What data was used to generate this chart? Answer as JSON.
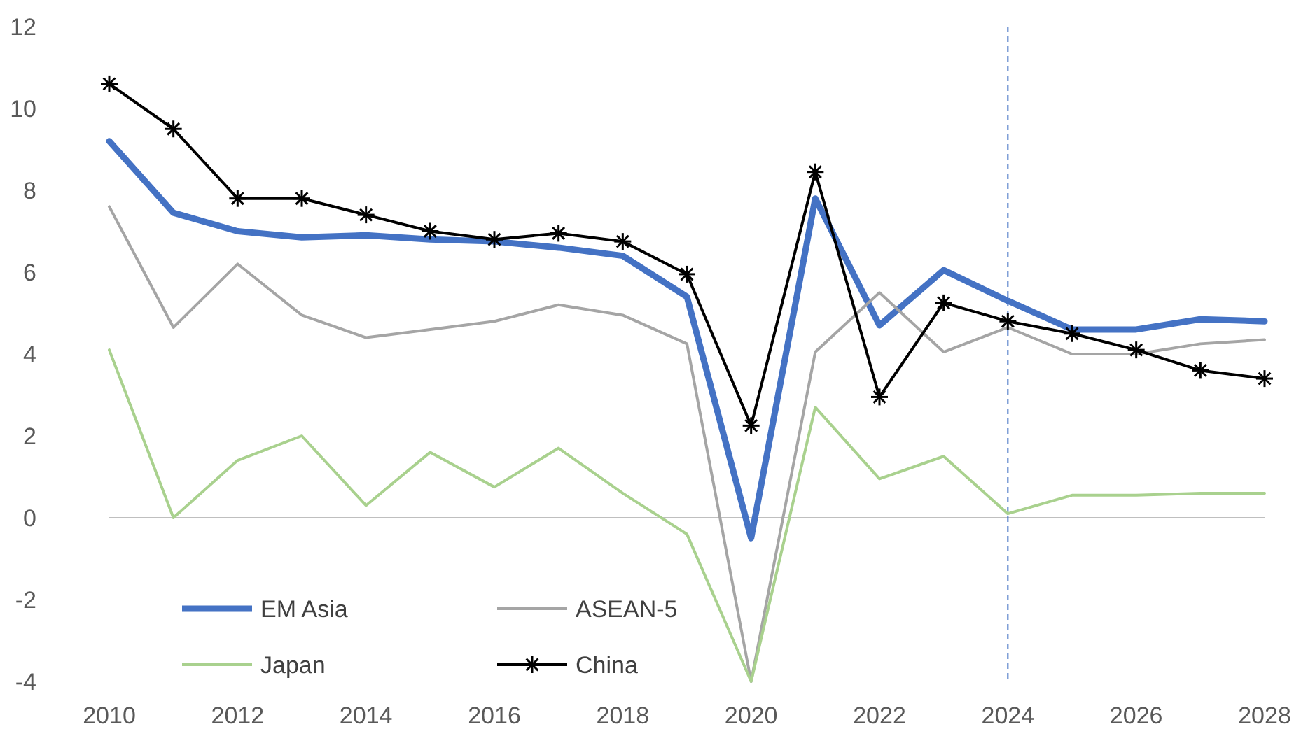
{
  "chart_data": {
    "type": "line",
    "x": [
      2010,
      2011,
      2012,
      2013,
      2014,
      2015,
      2016,
      2017,
      2018,
      2019,
      2020,
      2021,
      2022,
      2023,
      2024,
      2025,
      2026,
      2027,
      2028
    ],
    "series": [
      {
        "name": "EM Asia",
        "color": "#4472c4",
        "values": [
          9.2,
          7.45,
          7.0,
          6.85,
          6.9,
          6.8,
          6.75,
          6.6,
          6.4,
          5.4,
          -0.5,
          7.8,
          4.7,
          6.05,
          5.3,
          4.6,
          4.6,
          4.85,
          4.8
        ]
      },
      {
        "name": "ASEAN-5",
        "color": "#a5a5a5",
        "values": [
          7.6,
          4.65,
          6.2,
          4.95,
          4.4,
          4.6,
          4.8,
          5.2,
          4.95,
          4.25,
          -4.0,
          4.05,
          5.5,
          4.05,
          4.65,
          4.0,
          4.0,
          4.25,
          4.35
        ]
      },
      {
        "name": "Japan",
        "color": "#a9d18e",
        "values": [
          4.1,
          0.0,
          1.4,
          2.0,
          0.3,
          1.6,
          0.75,
          1.7,
          0.6,
          -0.4,
          -4.0,
          2.7,
          0.95,
          1.5,
          0.1,
          0.55,
          0.55,
          0.6,
          0.6
        ]
      },
      {
        "name": "China",
        "color": "#000000",
        "marker": "cross",
        "values": [
          10.6,
          9.5,
          7.8,
          7.8,
          7.4,
          7.0,
          6.8,
          6.95,
          6.75,
          5.95,
          2.25,
          8.45,
          2.95,
          5.25,
          4.8,
          4.5,
          4.1,
          3.6,
          3.4
        ]
      }
    ],
    "xlim": [
      2010,
      2028
    ],
    "xticks": [
      2010,
      2012,
      2014,
      2016,
      2018,
      2020,
      2022,
      2024,
      2026,
      2028
    ],
    "ylim": [
      -4,
      12
    ],
    "yticks": [
      -4,
      -2,
      0,
      2,
      4,
      6,
      8,
      10,
      12
    ],
    "grid": false,
    "legend": "bottom left",
    "marker": "none",
    "ref_lines": [
      {
        "axis": "x",
        "value": 2024,
        "color": "#4472c4",
        "line_style": "dashed"
      }
    ]
  }
}
